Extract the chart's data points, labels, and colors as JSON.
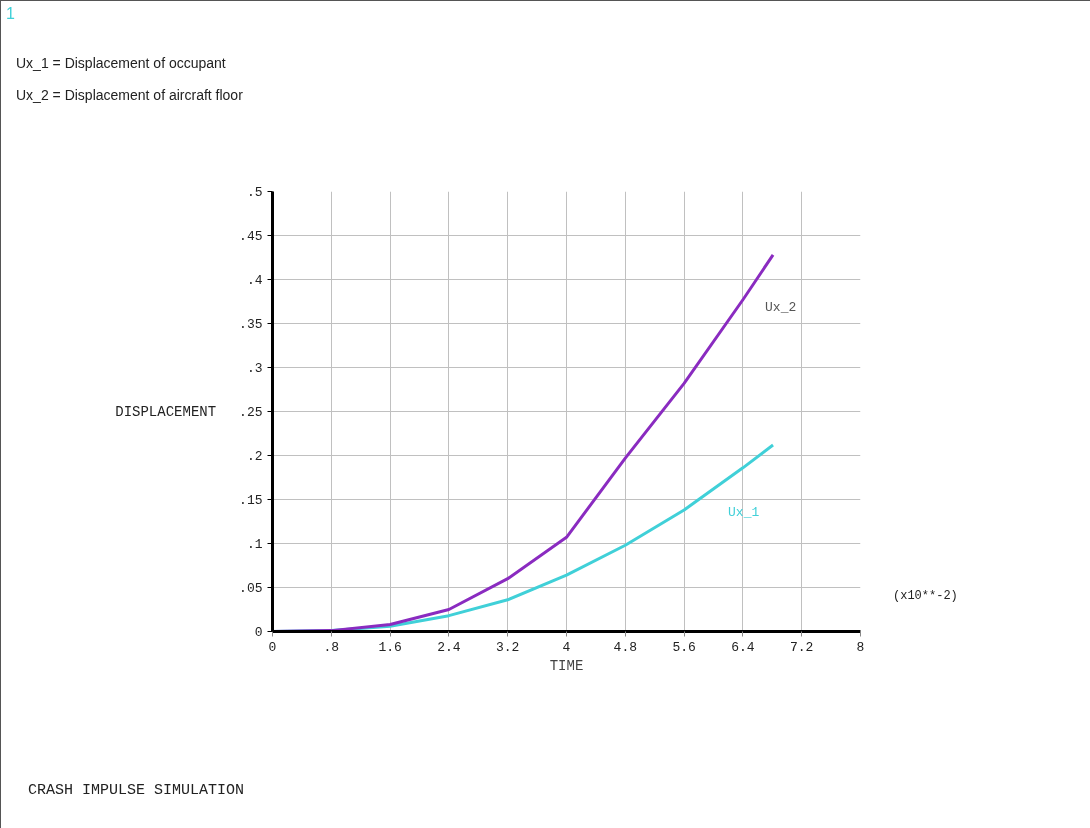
{
  "chart_data": {
    "type": "line",
    "title": "CRASH IMPULSE SIMULATION",
    "xlabel": "TIME",
    "ylabel": "DISPLACEMENT",
    "annotations": [
      "1",
      "Ux_1 = Displacement of occupant",
      "Ux_2 = Displacement of aircraft floor",
      "(x10**-2)"
    ],
    "x": [
      0,
      0.8,
      1.6,
      2.4,
      3.2,
      4.0,
      4.8,
      5.6,
      6.4,
      6.81
    ],
    "series": [
      {
        "name": "Ux_1",
        "color": "#40d0d8",
        "values": [
          0,
          0.001,
          0.006,
          0.018,
          0.036,
          0.064,
          0.098,
          0.138,
          0.186,
          0.212
        ]
      },
      {
        "name": "Ux_2",
        "color": "#8a2bc0",
        "values": [
          0,
          0.001,
          0.008,
          0.025,
          0.06,
          0.107,
          0.197,
          0.282,
          0.377,
          0.428
        ]
      }
    ],
    "xlim": [
      0,
      8
    ],
    "ylim": [
      0,
      0.5
    ],
    "xticks": [
      0,
      {
        "value": 0.8,
        "label": ".8"
      },
      1.6,
      2.4,
      3.2,
      4,
      4.8,
      5.6,
      6.4,
      7.2,
      8
    ],
    "yticks": [
      0,
      {
        "value": 0.05,
        "label": ".05"
      },
      {
        "value": 0.1,
        "label": ".1"
      },
      {
        "value": 0.15,
        "label": ".15"
      },
      {
        "value": 0.2,
        "label": ".2"
      },
      {
        "value": 0.25,
        "label": ".25"
      },
      {
        "value": 0.3,
        "label": ".3"
      },
      {
        "value": 0.35,
        "label": ".35"
      },
      {
        "value": 0.4,
        "label": ".4"
      },
      {
        "value": 0.45,
        "label": ".45"
      },
      {
        "value": 0.5,
        "label": ".5"
      }
    ],
    "grid": true,
    "line_style": "solid",
    "marker": "none"
  }
}
